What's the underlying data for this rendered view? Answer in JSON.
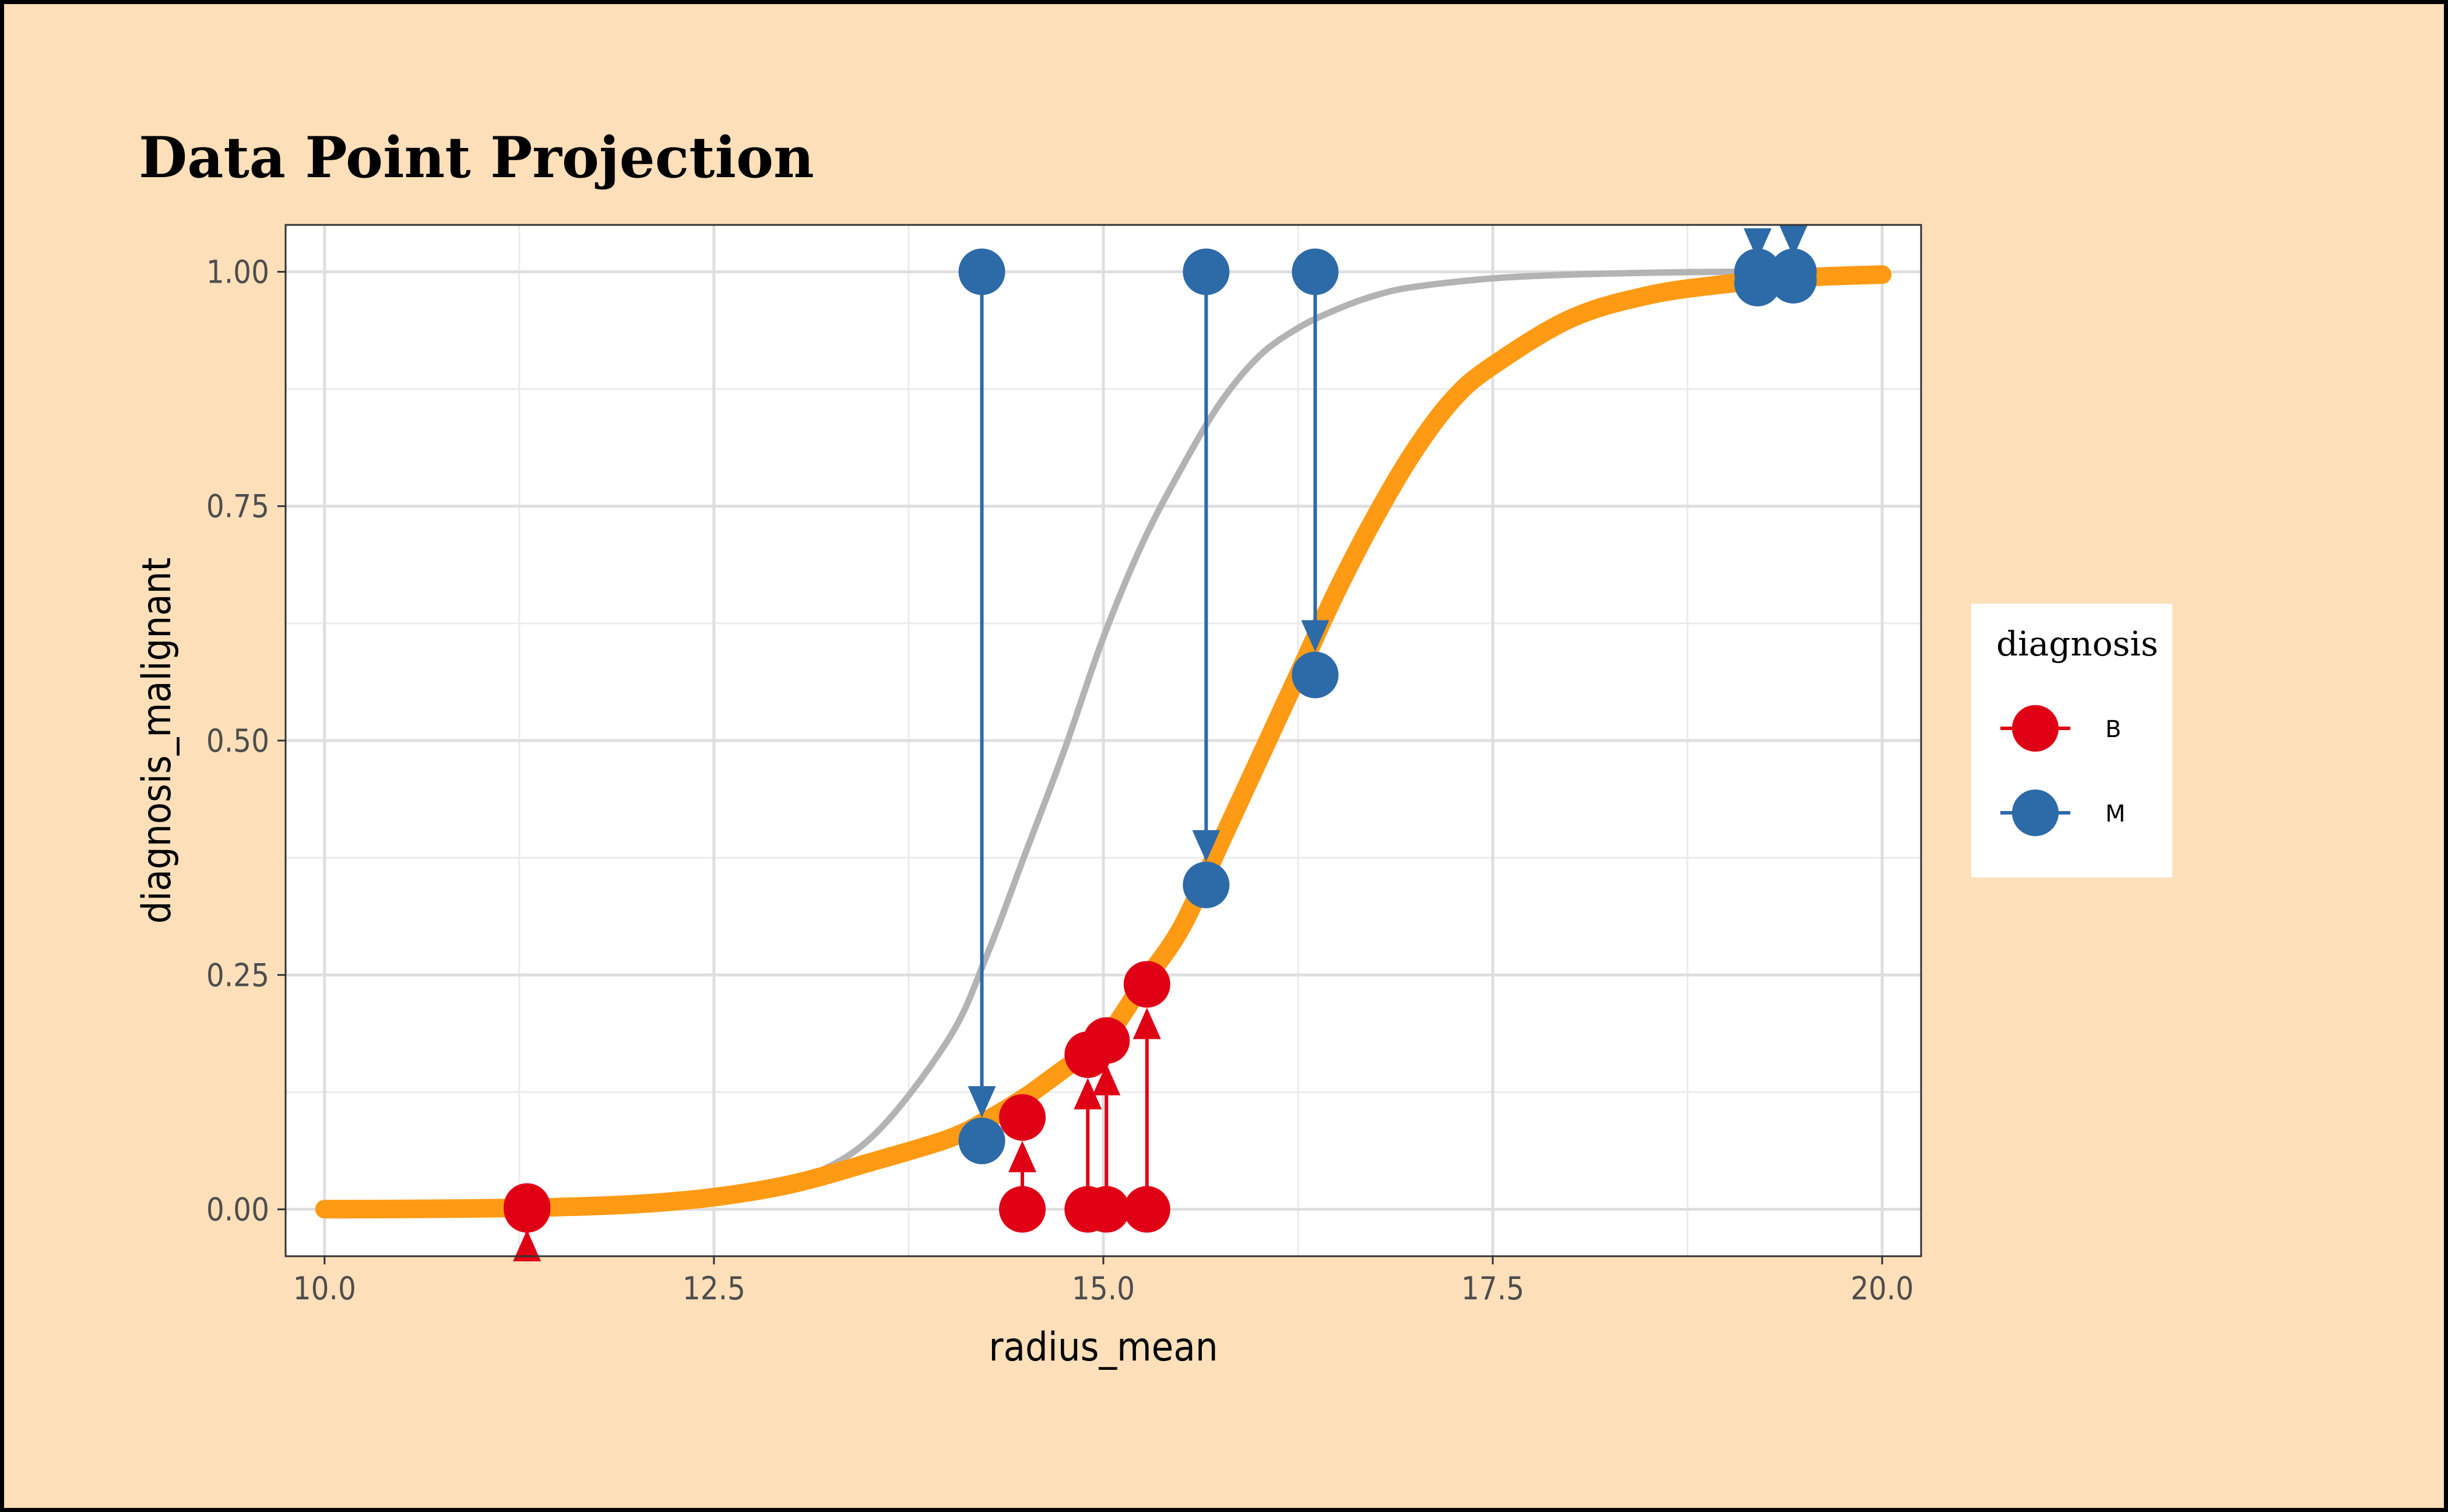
{
  "chart_data": {
    "type": "scatter",
    "title": "Data Point Projection",
    "xlabel": "radius_mean",
    "ylabel": "diagnosis_malignant",
    "xlim": [
      9.75,
      20.25
    ],
    "ylim": [
      -0.05,
      1.05
    ],
    "x_ticks": [
      10.0,
      12.5,
      15.0,
      17.5,
      20.0
    ],
    "x_tick_labels": [
      "10.0",
      "12.5",
      "15.0",
      "17.5",
      "20.0"
    ],
    "y_ticks": [
      0.0,
      0.25,
      0.5,
      0.75,
      1.0
    ],
    "y_tick_labels": [
      "0.00",
      "0.25",
      "0.50",
      "0.75",
      "1.00"
    ],
    "grid": true,
    "legend_position": "right",
    "legend_title": "diagnosis",
    "colors": {
      "B": "#e00016",
      "M": "#2d6aa8",
      "fitted_curve": "#ff9a14",
      "reference_curve": "#b3b3b3"
    },
    "curves": [
      {
        "role": "reference",
        "color": "#b3b3b3",
        "x": [
          10.0,
          10.5,
          11.0,
          11.5,
          12.0,
          12.5,
          13.0,
          13.5,
          14.0,
          14.25,
          14.5,
          14.75,
          15.0,
          15.25,
          15.5,
          15.75,
          16.0,
          16.25,
          16.5,
          16.75,
          17.0,
          17.5,
          18.0,
          18.5,
          19.0,
          19.5,
          20.0
        ],
        "y": [
          0.0001,
          0.0002,
          0.0006,
          0.0015,
          0.0041,
          0.011,
          0.029,
          0.075,
          0.18,
          0.27,
          0.38,
          0.49,
          0.61,
          0.71,
          0.79,
          0.86,
          0.91,
          0.94,
          0.96,
          0.975,
          0.984,
          0.993,
          0.997,
          0.999,
          1.0,
          1.0,
          1.0
        ]
      },
      {
        "role": "fitted",
        "color": "#ff9a14",
        "x": [
          10.0,
          10.5,
          11.0,
          11.5,
          12.0,
          12.5,
          13.0,
          13.5,
          14.0,
          14.25,
          14.5,
          14.75,
          15.0,
          15.25,
          15.5,
          15.75,
          16.0,
          16.25,
          16.5,
          16.75,
          17.0,
          17.25,
          17.5,
          18.0,
          18.5,
          19.0,
          19.5,
          20.0
        ],
        "y": [
          0.0002,
          0.0004,
          0.001,
          0.0024,
          0.0056,
          0.013,
          0.027,
          0.05,
          0.075,
          0.095,
          0.12,
          0.15,
          0.18,
          0.24,
          0.3,
          0.39,
          0.48,
          0.57,
          0.66,
          0.74,
          0.81,
          0.865,
          0.9,
          0.95,
          0.975,
          0.987,
          0.994,
          0.997
        ]
      }
    ],
    "series": [
      {
        "name": "B",
        "points": [
          {
            "x": 11.3,
            "y_obs": 0.0,
            "y_fit": 0.003
          },
          {
            "x": 14.48,
            "y_obs": 0.0,
            "y_fit": 0.098
          },
          {
            "x": 14.9,
            "y_obs": 0.0,
            "y_fit": 0.165
          },
          {
            "x": 15.02,
            "y_obs": 0.0,
            "y_fit": 0.18
          },
          {
            "x": 15.28,
            "y_obs": 0.0,
            "y_fit": 0.24
          }
        ]
      },
      {
        "name": "M",
        "points": [
          {
            "x": 14.22,
            "y_obs": 1.0,
            "y_fit": 0.073
          },
          {
            "x": 15.66,
            "y_obs": 1.0,
            "y_fit": 0.346
          },
          {
            "x": 16.36,
            "y_obs": 1.0,
            "y_fit": 0.57
          },
          {
            "x": 19.2,
            "y_obs": 1.0,
            "y_fit": 0.988
          },
          {
            "x": 19.43,
            "y_obs": 1.0,
            "y_fit": 0.991
          }
        ]
      }
    ]
  }
}
